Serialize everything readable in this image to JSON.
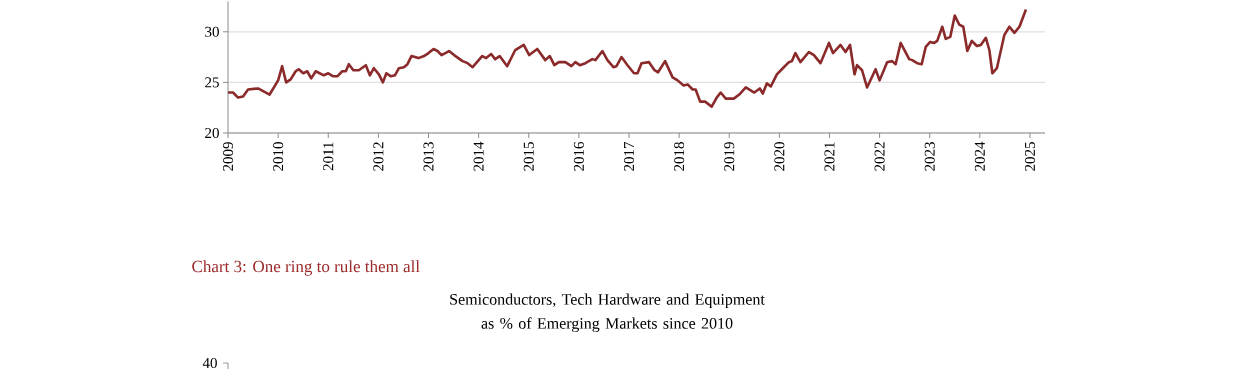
{
  "chart_data": [
    {
      "type": "line",
      "xlim": [
        2009,
        2025.3
      ],
      "ylim": [
        20,
        33
      ],
      "yticks": [
        20,
        25,
        30
      ],
      "xticks": [
        2009,
        2010,
        2011,
        2012,
        2013,
        2014,
        2015,
        2016,
        2017,
        2018,
        2019,
        2020,
        2021,
        2022,
        2023,
        2024,
        2025
      ],
      "grid": "y",
      "line_style": "solid",
      "series": [
        {
          "color": "#8b2a2a",
          "x": [
            2009.0,
            2009.1,
            2009.2,
            2009.3,
            2009.4,
            2009.6,
            2009.83,
            2010.0,
            2010.08,
            2010.16,
            2010.25,
            2010.35,
            2010.41,
            2010.5,
            2010.58,
            2010.66,
            2010.75,
            2010.91,
            2011.0,
            2011.1,
            2011.18,
            2011.28,
            2011.35,
            2011.41,
            2011.5,
            2011.61,
            2011.75,
            2011.83,
            2011.91,
            2012.01,
            2012.09,
            2012.16,
            2012.25,
            2012.33,
            2012.41,
            2012.51,
            2012.58,
            2012.66,
            2012.8,
            2012.91,
            2013.0,
            2013.1,
            2013.18,
            2013.26,
            2013.41,
            2013.51,
            2013.68,
            2013.78,
            2013.88,
            2014.07,
            2014.15,
            2014.25,
            2014.33,
            2014.42,
            2014.57,
            2014.73,
            2014.9,
            2015.01,
            2015.17,
            2015.33,
            2015.42,
            2015.51,
            2015.6,
            2015.73,
            2015.85,
            2015.93,
            2016.02,
            2016.13,
            2016.27,
            2016.33,
            2016.47,
            2016.57,
            2016.69,
            2016.75,
            2016.85,
            2016.97,
            2017.1,
            2017.17,
            2017.25,
            2017.4,
            2017.51,
            2017.58,
            2017.72,
            2017.87,
            2017.97,
            2018.09,
            2018.17,
            2018.27,
            2018.33,
            2018.42,
            2018.52,
            2018.65,
            2018.75,
            2018.83,
            2018.93,
            2019.09,
            2019.2,
            2019.33,
            2019.5,
            2019.61,
            2019.67,
            2019.75,
            2019.83,
            2019.95,
            2020.05,
            2020.19,
            2020.25,
            2020.32,
            2020.42,
            2020.59,
            2020.69,
            2020.82,
            2020.99,
            2021.07,
            2021.22,
            2021.32,
            2021.41,
            2021.5,
            2021.55,
            2021.65,
            2021.75,
            2021.92,
            2022.0,
            2022.15,
            2022.25,
            2022.32,
            2022.42,
            2022.59,
            2022.65,
            2022.75,
            2022.84,
            2022.92,
            2023.01,
            2023.09,
            2023.15,
            2023.25,
            2023.32,
            2023.41,
            2023.5,
            2023.59,
            2023.67,
            2023.75,
            2023.84,
            2023.94,
            2024.02,
            2024.12,
            2024.19,
            2024.25,
            2024.34,
            2024.49,
            2024.59,
            2024.69,
            2024.79,
            2024.85,
            2024.92
          ],
          "values": [
            24.0,
            24.0,
            23.5,
            23.6,
            24.3,
            24.4,
            23.8,
            25.2,
            26.6,
            25.0,
            25.3,
            26.1,
            26.3,
            25.9,
            26.1,
            25.4,
            26.1,
            25.7,
            25.9,
            25.6,
            25.6,
            26.1,
            26.1,
            26.8,
            26.2,
            26.2,
            26.7,
            25.7,
            26.4,
            25.8,
            25.0,
            25.9,
            25.6,
            25.7,
            26.4,
            26.5,
            26.8,
            27.6,
            27.4,
            27.6,
            27.9,
            28.3,
            28.1,
            27.7,
            28.1,
            27.7,
            27.1,
            26.9,
            26.5,
            27.6,
            27.4,
            27.8,
            27.3,
            27.6,
            26.6,
            28.2,
            28.7,
            27.7,
            28.3,
            27.2,
            27.6,
            26.7,
            27.0,
            27.0,
            26.6,
            27.0,
            26.7,
            26.9,
            27.3,
            27.2,
            28.1,
            27.2,
            26.5,
            26.6,
            27.5,
            26.7,
            25.9,
            25.9,
            26.9,
            27.0,
            26.2,
            26.0,
            27.1,
            25.5,
            25.2,
            24.7,
            24.8,
            24.3,
            24.3,
            23.1,
            23.1,
            22.6,
            23.5,
            24.0,
            23.4,
            23.4,
            23.8,
            24.5,
            24.0,
            24.4,
            23.9,
            24.9,
            24.6,
            25.8,
            26.3,
            27.0,
            27.1,
            27.9,
            27.0,
            28.0,
            27.7,
            26.9,
            28.9,
            27.9,
            28.7,
            28.0,
            28.7,
            25.8,
            26.7,
            26.2,
            24.5,
            26.3,
            25.2,
            27.0,
            27.1,
            26.8,
            28.9,
            27.3,
            27.2,
            26.9,
            26.8,
            28.5,
            29.0,
            28.9,
            29.1,
            30.5,
            29.3,
            29.5,
            31.6,
            30.7,
            30.5,
            28.1,
            29.1,
            28.6,
            28.7,
            29.4,
            28.2,
            25.9,
            26.4,
            29.7,
            30.5,
            29.9,
            30.5,
            null,
            32.2
          ]
        }
      ]
    },
    {
      "type": "other",
      "title": "Chart 3: One ring to rule them all",
      "subtitle": "Semiconductors, Tech Hardware and Equipment as % of Emerging Markets since 2010",
      "annotations": [
        "40"
      ]
    }
  ]
}
